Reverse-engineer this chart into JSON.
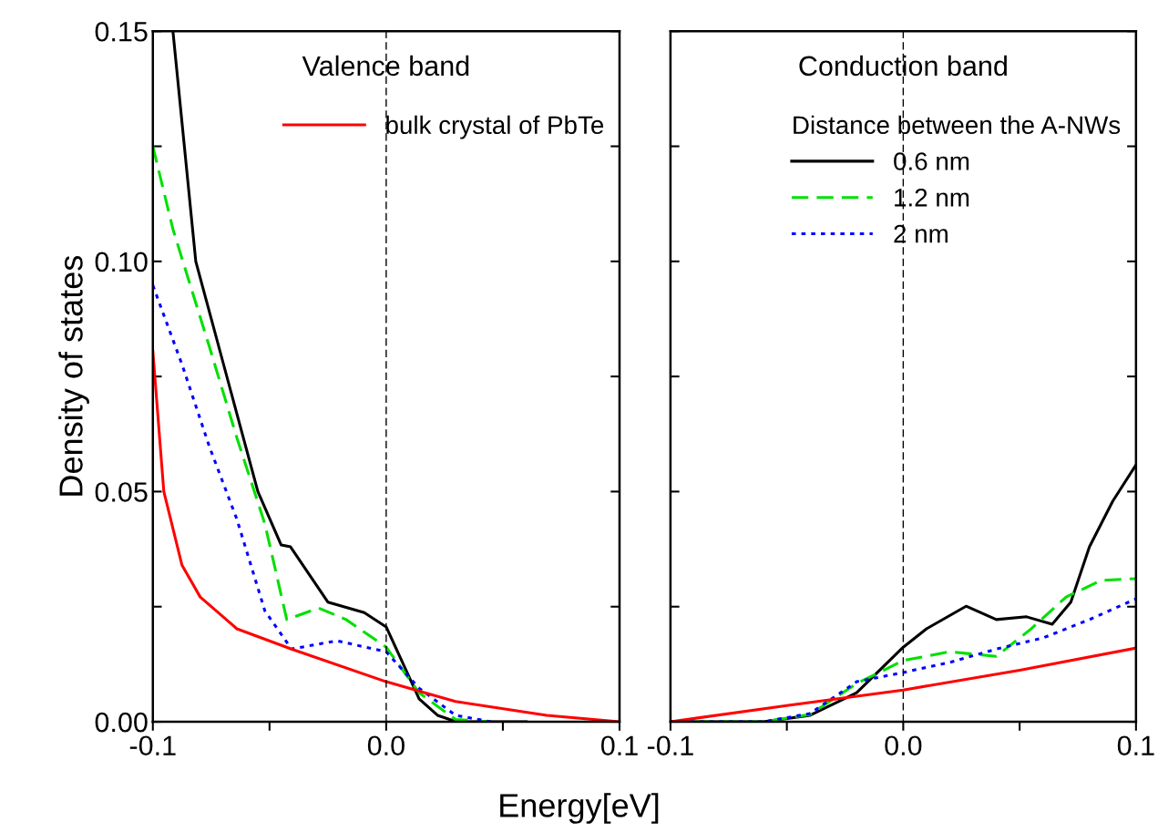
{
  "chart_data": [
    {
      "type": "line",
      "title": "Valence band",
      "xlabel": "Energy[eV]",
      "ylabel": "Density of states",
      "xlim": [
        -0.1,
        0.1
      ],
      "ylim": [
        0,
        0.15
      ],
      "xticks": [
        {
          "value": -0.1,
          "label": "-0.1"
        },
        {
          "value": -0.05,
          "label": null
        },
        {
          "value": 0,
          "label": "0.0"
        },
        {
          "value": 0.05,
          "label": null
        },
        {
          "value": 0.1,
          "label": "0.1"
        }
      ],
      "yticks": [
        {
          "value": 0,
          "label": "0.00"
        },
        {
          "value": 0.025,
          "label": null
        },
        {
          "value": 0.05,
          "label": "0.05"
        },
        {
          "value": 0.075,
          "label": null
        },
        {
          "value": 0.1,
          "label": "0.10"
        },
        {
          "value": 0.125,
          "label": null
        },
        {
          "value": 0.15,
          "label": "0.15"
        }
      ],
      "legend": "top right",
      "grid": false,
      "ref_lines": [
        {
          "axis": "x",
          "value": 0,
          "color": "#000000",
          "line_style": "dashed"
        }
      ],
      "series": [
        {
          "color": "#000000",
          "line_style": "solid",
          "x": [
            -0.0914,
            -0.0816,
            -0.055,
            -0.045,
            -0.041,
            -0.025,
            -0.0094,
            0,
            0.006,
            0.0141,
            0.022,
            0.03,
            0.06
          ],
          "values": [
            0.15,
            0.1,
            0.05,
            0.0384,
            0.038,
            0.026,
            0.0237,
            0.0206,
            0.014,
            0.005,
            0.0014,
            0,
            0
          ]
        },
        {
          "color": "#00e000",
          "line_style": "dashed",
          "x": [
            -0.1,
            -0.0914,
            -0.0758,
            -0.064,
            -0.052,
            -0.0426,
            -0.0289,
            -0.0172,
            0,
            0.0141,
            0.0297,
            0.045
          ],
          "values": [
            0.125,
            0.107,
            0.0815,
            0.0617,
            0.043,
            0.0222,
            0.0247,
            0.0222,
            0.0162,
            0.0063,
            0.0005,
            0
          ]
        },
        {
          "color": "#0000ff",
          "line_style": "dotted",
          "x": [
            -0.1,
            -0.0875,
            -0.0758,
            -0.064,
            -0.052,
            -0.0406,
            -0.0211,
            0,
            0.0141,
            0.0297,
            0.045
          ],
          "values": [
            0.0948,
            0.0776,
            0.0598,
            0.044,
            0.0241,
            0.0158,
            0.0176,
            0.0152,
            0.0073,
            0.0014,
            0
          ]
        },
        {
          "name": "bulk crystal of PbTe",
          "color": "#ff0000",
          "line_style": "solid",
          "x": [
            -0.1,
            -0.0953,
            -0.0875,
            -0.0797,
            -0.064,
            -0.0406,
            0,
            0.0297,
            0.0688,
            0.1
          ],
          "values": [
            0.0805,
            0.05,
            0.034,
            0.0271,
            0.0202,
            0.0158,
            0.0087,
            0.0044,
            0.0014,
            0
          ]
        }
      ]
    },
    {
      "type": "line",
      "title": "Conduction band",
      "xlim": [
        -0.1,
        0.1
      ],
      "ylim": [
        0,
        0.15
      ],
      "tick_labels": "x",
      "legend_title": "Distance between the A-NWs",
      "xticks": [
        {
          "value": -0.1,
          "label": "-0.1"
        },
        {
          "value": -0.05,
          "label": null
        },
        {
          "value": 0,
          "label": "0.0"
        },
        {
          "value": 0.05,
          "label": null
        },
        {
          "value": 0.1,
          "label": "0.1"
        }
      ],
      "yticks": [
        {
          "value": 0,
          "label": null
        },
        {
          "value": 0.025,
          "label": null
        },
        {
          "value": 0.05,
          "label": null
        },
        {
          "value": 0.075,
          "label": null
        },
        {
          "value": 0.1,
          "label": null
        },
        {
          "value": 0.125,
          "label": null
        },
        {
          "value": 0.15,
          "label": null
        }
      ],
      "legend": "top right",
      "grid": false,
      "ref_lines": [
        {
          "axis": "x",
          "value": 0,
          "color": "#000000",
          "line_style": "dashed"
        }
      ],
      "series": [
        {
          "name": "0.6 nm",
          "color": "#000000",
          "line_style": "solid",
          "x": [
            -0.1,
            -0.06,
            -0.04,
            -0.02,
            0,
            0.01,
            0.027,
            0.04,
            0.053,
            0.064,
            0.072,
            0.08,
            0.09,
            0.1
          ],
          "values": [
            0,
            0,
            0.0014,
            0.0063,
            0.0162,
            0.0202,
            0.0251,
            0.0222,
            0.0228,
            0.0212,
            0.026,
            0.038,
            0.0479,
            0.0558
          ]
        },
        {
          "name": "1.2 nm",
          "color": "#00e000",
          "line_style": "dashed",
          "x": [
            -0.1,
            -0.06,
            -0.04,
            -0.02,
            0,
            0.02,
            0.04,
            0.055,
            0.07,
            0.085,
            0.1
          ],
          "values": [
            0,
            0,
            0.0016,
            0.0083,
            0.0133,
            0.0152,
            0.0142,
            0.0202,
            0.0271,
            0.0307,
            0.0311
          ]
        },
        {
          "name": "2 nm",
          "color": "#0000ff",
          "line_style": "dotted",
          "x": [
            -0.1,
            -0.06,
            -0.04,
            -0.02,
            0,
            0.02,
            0.04,
            0.06,
            0.08,
            0.1
          ],
          "values": [
            0,
            0,
            0.0018,
            0.0087,
            0.0107,
            0.0129,
            0.0158,
            0.0182,
            0.0222,
            0.0267
          ]
        },
        {
          "color": "#ff0000",
          "line_style": "solid",
          "x": [
            -0.1,
            -0.05,
            0,
            0.05,
            0.1
          ],
          "values": [
            0,
            0.0035,
            0.0069,
            0.0112,
            0.016
          ]
        }
      ]
    }
  ]
}
